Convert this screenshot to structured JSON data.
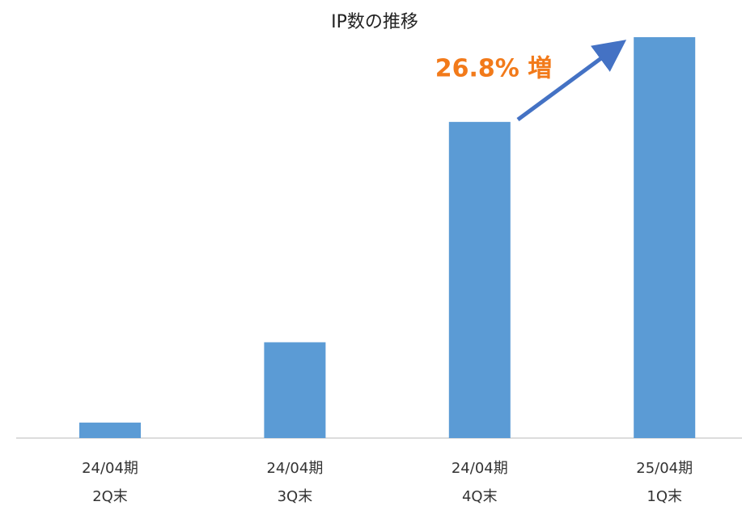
{
  "chart_data": {
    "type": "bar",
    "title": "IP数の推移",
    "categories": [
      [
        "24/04期",
        "2Q末"
      ],
      [
        "24/04期",
        "3Q末"
      ],
      [
        "24/04期",
        "4Q末"
      ],
      [
        "25/04期",
        "1Q末"
      ]
    ],
    "values": [
      4.9,
      30.3,
      100,
      126.8
    ],
    "color": "#5b9bd5",
    "ylim": [
      0,
      126.8
    ],
    "annotation": "26.8% 増"
  }
}
